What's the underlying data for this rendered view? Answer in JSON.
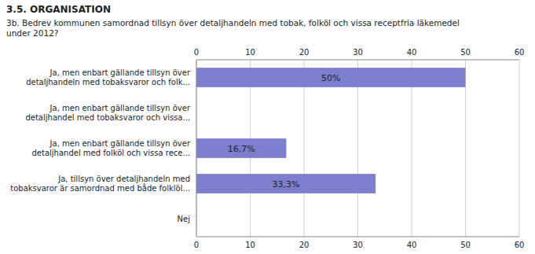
{
  "chart_data": {
    "type": "bar",
    "orientation": "horizontal",
    "title": "3.5. ORGANISATION",
    "subtitle": "3b. Bedrev kommunen samordnad tillsyn över detaljhandeln med tobak, folköl och vissa receptfria läkemedel\nunder 2012?",
    "categories": [
      "Ja, men enbart gällande tillsyn över\ndetaljhandeln med tobaksvaror och folk...",
      "Ja, men enbart gällande tillsyn över\ndetaljhandel med tobaksvaror och vissa...",
      "Ja, men enbart gällande tillsyn över\ndetaljhandel med folköl och vissa rece...",
      "Ja, tillsyn över detaljhandeln med\ntobaksvaror är samordnad med både folklöl...",
      "Nej"
    ],
    "values": [
      50.0,
      0.0,
      16.7,
      33.3,
      0.0
    ],
    "value_labels": [
      "50%",
      null,
      "16,7%",
      "33,3%",
      null
    ],
    "data_labels": true,
    "color": "#7b7fcd",
    "xlim": [
      0,
      60
    ],
    "xticks": [
      0,
      10,
      20,
      30,
      40,
      50,
      60
    ],
    "grid": true
  }
}
